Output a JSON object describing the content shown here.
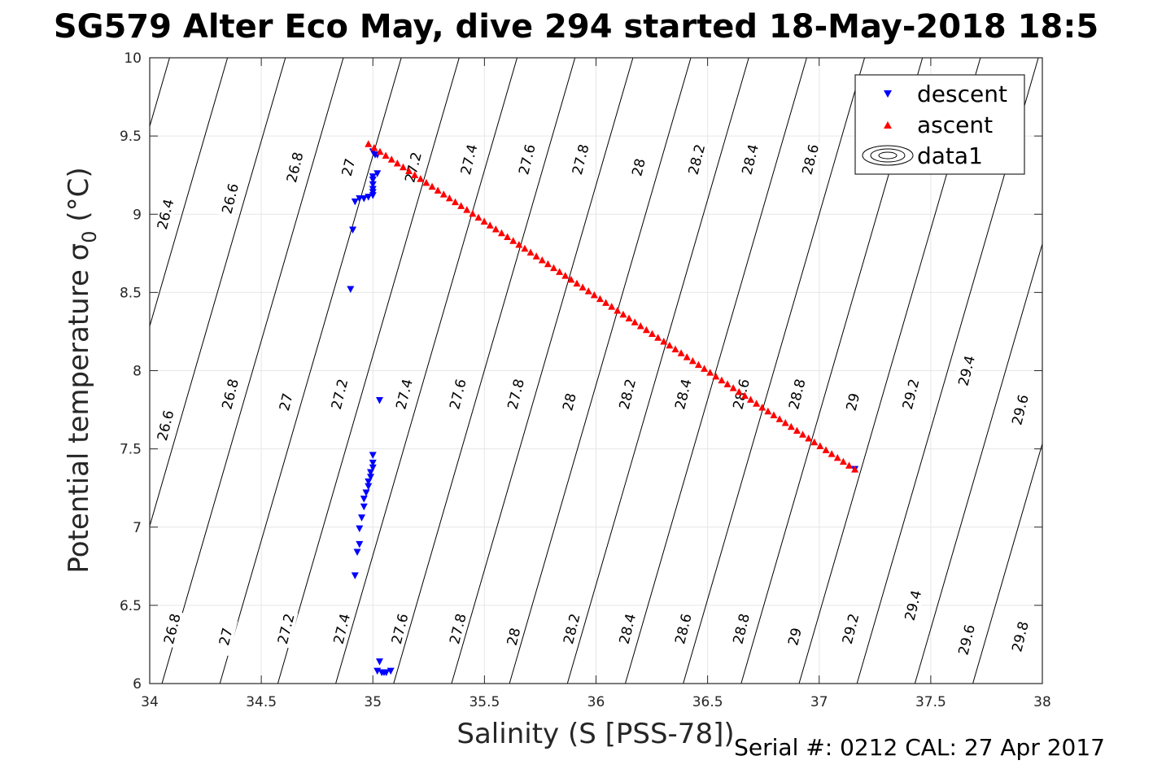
{
  "title": "SG579 Alter Eco May, dive 294 started 18-May-2018 18:5",
  "footer": "Serial #: 0212  CAL: 27 Apr 2017",
  "colors": {
    "descent": "#0000ff",
    "ascent": "#ff0000",
    "contour": "#000000",
    "grid": "#e6e6e6",
    "axis": "#262626"
  },
  "chart_data": {
    "type": "scatter",
    "title": "SG579 Alter Eco May, dive 294 started 18-May-2018 18:5",
    "xlabel": "Salinity (S [PSS-78])",
    "ylabel": "Potential temperature σ",
    "ylabel_sub": "0",
    "ylabel_unit": " (°C)",
    "xlim": [
      34,
      38
    ],
    "ylim": [
      6,
      10
    ],
    "grid": true,
    "xticks": [
      34,
      34.5,
      35,
      35.5,
      36,
      36.5,
      37,
      37.5,
      38
    ],
    "xtick_labels": [
      "34",
      "34.5",
      "35",
      "35.5",
      "36",
      "36.5",
      "37",
      "37.5",
      "38"
    ],
    "yticks": [
      6,
      6.5,
      7,
      7.5,
      8,
      8.5,
      9,
      9.5,
      10
    ],
    "ytick_labels": [
      "6",
      "6.5",
      "7",
      "7.5",
      "8",
      "8.5",
      "9",
      "9.5",
      "10"
    ],
    "legend_position": "top-right",
    "legend": [
      "descent",
      "ascent",
      "data1"
    ],
    "series": [
      {
        "name": "descent",
        "marker": "triangle-down",
        "color": "#0000ff",
        "points": [
          [
            35.02,
            9.38
          ],
          [
            35.0,
            9.4
          ],
          [
            35.01,
            9.38
          ],
          [
            35.0,
            9.24
          ],
          [
            35.0,
            9.22
          ],
          [
            35.0,
            9.19
          ],
          [
            35.0,
            9.16
          ],
          [
            35.0,
            9.14
          ],
          [
            35.0,
            9.12
          ],
          [
            34.98,
            9.11
          ],
          [
            34.96,
            9.1
          ],
          [
            34.94,
            9.1
          ],
          [
            34.92,
            9.08
          ],
          [
            35.02,
            9.26
          ],
          [
            34.91,
            8.9
          ],
          [
            34.9,
            8.52
          ],
          [
            35.03,
            7.81
          ],
          [
            35.0,
            7.46
          ],
          [
            35.0,
            7.41
          ],
          [
            35.0,
            7.38
          ],
          [
            34.99,
            7.35
          ],
          [
            34.99,
            7.32
          ],
          [
            34.98,
            7.29
          ],
          [
            34.98,
            7.26
          ],
          [
            34.97,
            7.22
          ],
          [
            34.96,
            7.18
          ],
          [
            34.96,
            7.13
          ],
          [
            34.95,
            7.06
          ],
          [
            34.94,
            6.99
          ],
          [
            34.94,
            6.89
          ],
          [
            34.93,
            6.84
          ],
          [
            34.92,
            6.69
          ],
          [
            35.03,
            6.14
          ],
          [
            35.02,
            6.08
          ],
          [
            35.04,
            6.07
          ],
          [
            35.06,
            6.07
          ],
          [
            35.08,
            6.08
          ],
          [
            35.05,
            6.07
          ],
          [
            37.16,
            7.37
          ]
        ]
      },
      {
        "name": "ascent",
        "marker": "triangle-up",
        "color": "#ff0000",
        "start": [
          34.98,
          9.45
        ],
        "end": [
          37.16,
          7.37
        ],
        "count": 85
      }
    ],
    "contour_levels": [
      26.4,
      26.6,
      26.8,
      27,
      27.2,
      27.4,
      27.6,
      27.8,
      28,
      28.2,
      28.4,
      28.6,
      28.8,
      29,
      29.2,
      29.4,
      29.6,
      29.8
    ],
    "contour_labels": [
      {
        "text": "26.4",
        "s": 34.07,
        "t": 9.0
      },
      {
        "text": "26.6",
        "s": 34.36,
        "t": 9.1
      },
      {
        "text": "26.8",
        "s": 34.65,
        "t": 9.3
      },
      {
        "text": "27",
        "s": 34.89,
        "t": 9.3
      },
      {
        "text": "27.2",
        "s": 35.18,
        "t": 9.3
      },
      {
        "text": "27.4",
        "s": 35.43,
        "t": 9.35
      },
      {
        "text": "27.6",
        "s": 35.69,
        "t": 9.35
      },
      {
        "text": "27.8",
        "s": 35.93,
        "t": 9.35
      },
      {
        "text": "28",
        "s": 36.19,
        "t": 9.3
      },
      {
        "text": "28.2",
        "s": 36.45,
        "t": 9.35
      },
      {
        "text": "28.4",
        "s": 36.69,
        "t": 9.35
      },
      {
        "text": "28.6",
        "s": 36.96,
        "t": 9.35
      },
      {
        "text": "26.6",
        "s": 34.07,
        "t": 7.65
      },
      {
        "text": "26.8",
        "s": 34.36,
        "t": 7.85
      },
      {
        "text": "27",
        "s": 34.61,
        "t": 7.8
      },
      {
        "text": "27.2",
        "s": 34.85,
        "t": 7.85
      },
      {
        "text": "27.4",
        "s": 35.14,
        "t": 7.85
      },
      {
        "text": "27.6",
        "s": 35.38,
        "t": 7.85
      },
      {
        "text": "27.8",
        "s": 35.64,
        "t": 7.85
      },
      {
        "text": "28",
        "s": 35.88,
        "t": 7.8
      },
      {
        "text": "28.2",
        "s": 36.14,
        "t": 7.85
      },
      {
        "text": "28.4",
        "s": 36.39,
        "t": 7.85
      },
      {
        "text": "28.6",
        "s": 36.65,
        "t": 7.85
      },
      {
        "text": "28.8",
        "s": 36.9,
        "t": 7.85
      },
      {
        "text": "29",
        "s": 37.15,
        "t": 7.8
      },
      {
        "text": "29.2",
        "s": 37.41,
        "t": 7.85
      },
      {
        "text": "29.4",
        "s": 37.66,
        "t": 8.0
      },
      {
        "text": "29.6",
        "s": 37.9,
        "t": 7.75
      },
      {
        "text": "26.8",
        "s": 34.1,
        "t": 6.35
      },
      {
        "text": "27",
        "s": 34.34,
        "t": 6.3
      },
      {
        "text": "27.2",
        "s": 34.61,
        "t": 6.35
      },
      {
        "text": "27.4",
        "s": 34.86,
        "t": 6.35
      },
      {
        "text": "27.6",
        "s": 35.12,
        "t": 6.35
      },
      {
        "text": "27.8",
        "s": 35.38,
        "t": 6.35
      },
      {
        "text": "28",
        "s": 35.63,
        "t": 6.3
      },
      {
        "text": "28.2",
        "s": 35.89,
        "t": 6.35
      },
      {
        "text": "28.4",
        "s": 36.14,
        "t": 6.35
      },
      {
        "text": "28.6",
        "s": 36.39,
        "t": 6.35
      },
      {
        "text": "28.8",
        "s": 36.65,
        "t": 6.35
      },
      {
        "text": "29",
        "s": 36.89,
        "t": 6.3
      },
      {
        "text": "29.2",
        "s": 37.14,
        "t": 6.35
      },
      {
        "text": "29.4",
        "s": 37.42,
        "t": 6.5
      },
      {
        "text": "29.6",
        "s": 37.66,
        "t": 6.28
      },
      {
        "text": "29.8",
        "s": 37.9,
        "t": 6.3
      }
    ]
  }
}
